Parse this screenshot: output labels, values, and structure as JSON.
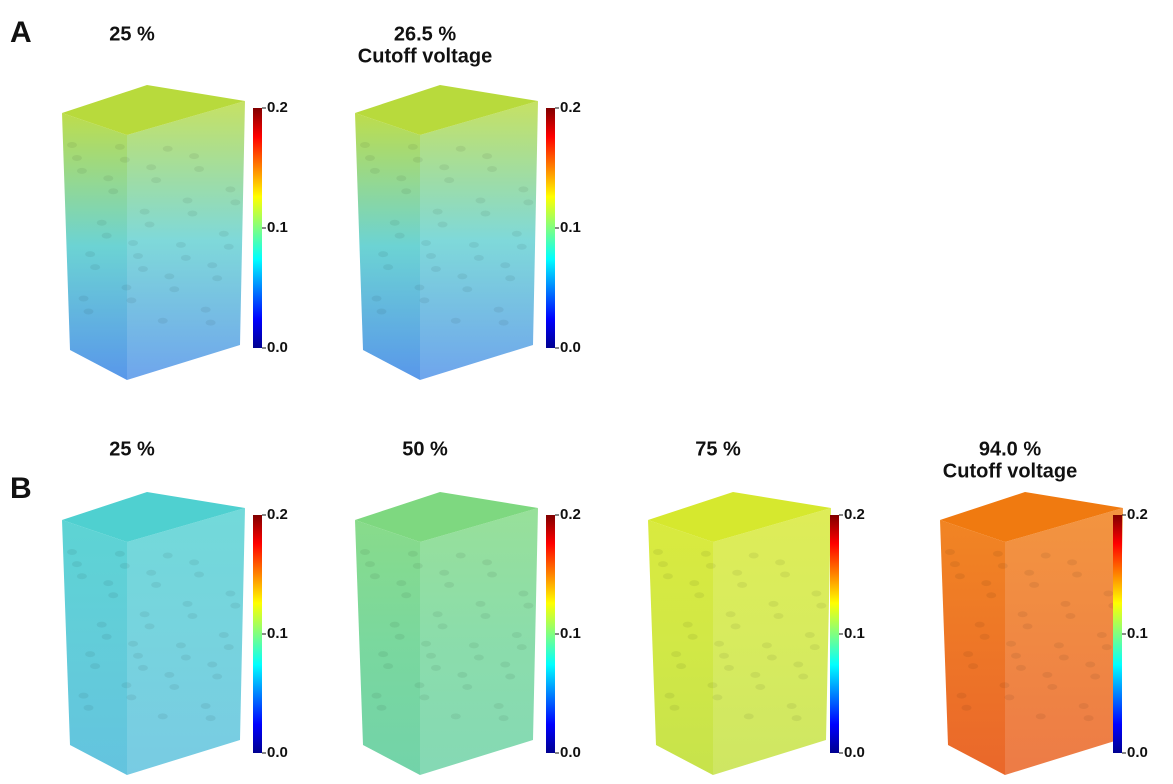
{
  "panels": [
    {
      "label": "A",
      "items": [
        {
          "title": [
            "25 %"
          ],
          "colors": [
            "#b8da3c",
            "#5fcfd0",
            "#4a8ee8"
          ],
          "ticks": [
            "0.2",
            "0.1",
            "0.0"
          ]
        },
        {
          "title": [
            "26.5 %",
            "Cutoff voltage"
          ],
          "colors": [
            "#b8da3c",
            "#5fcfd0",
            "#4a8ee8"
          ],
          "ticks": [
            "0.2",
            "0.1",
            "0.0"
          ]
        }
      ]
    },
    {
      "label": "B",
      "items": [
        {
          "title": [
            "25 %"
          ],
          "colors": [
            "#4fd0d0",
            "#55c8d6",
            "#56bedc"
          ],
          "ticks": [
            "0.2",
            "0.1",
            "0.0"
          ]
        },
        {
          "title": [
            "50 %"
          ],
          "colors": [
            "#7ed880",
            "#6ed496",
            "#66cfa2"
          ],
          "ticks": [
            "0.2",
            "0.1",
            "0.0"
          ]
        },
        {
          "title": [
            "75 %"
          ],
          "colors": [
            "#d6e82e",
            "#cde636",
            "#c2e03c"
          ],
          "ticks": [
            "0.2",
            "0.1",
            "0.0"
          ]
        },
        {
          "title": [
            "94.0 %",
            "Cutoff voltage"
          ],
          "colors": [
            "#f07a10",
            "#ec6a14",
            "#e85a18"
          ],
          "ticks": [
            "0.2",
            "0.1",
            "0.0"
          ]
        }
      ]
    }
  ]
}
